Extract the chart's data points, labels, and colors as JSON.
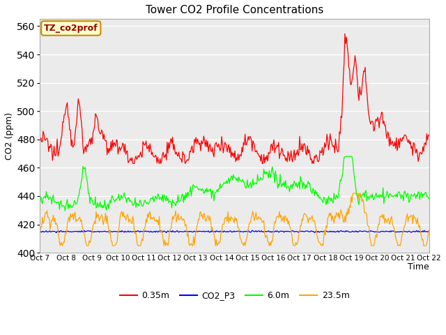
{
  "title": "Tower CO2 Profile Concentrations",
  "xlabel": "Time",
  "ylabel": "CO2 (ppm)",
  "ylim": [
    400,
    565
  ],
  "yticks": [
    400,
    420,
    440,
    460,
    480,
    500,
    520,
    540,
    560
  ],
  "bg_color": "#ebebeb",
  "fig_bg_color": "#ffffff",
  "annotation_text": "TZ_co2prof",
  "annotation_bg": "#ffffcc",
  "annotation_edge": "#cc8800",
  "legend_entries": [
    "0.35m",
    "CO2_P3",
    "6.0m",
    "23.5m"
  ],
  "line_colors": [
    "red",
    "blue",
    "lime",
    "orange"
  ],
  "x_tick_labels": [
    "Oct 7",
    "Oct 8",
    "Oct 9",
    "Oct 10",
    "Oct 11",
    "Oct 12",
    "Oct 13",
    "Oct 14",
    "Oct 15",
    "Oct 16",
    "Oct 17",
    "Oct 18",
    "Oct 19",
    "Oct 20",
    "Oct 21",
    "Oct 22"
  ],
  "n_points": 500,
  "seed": 12345
}
